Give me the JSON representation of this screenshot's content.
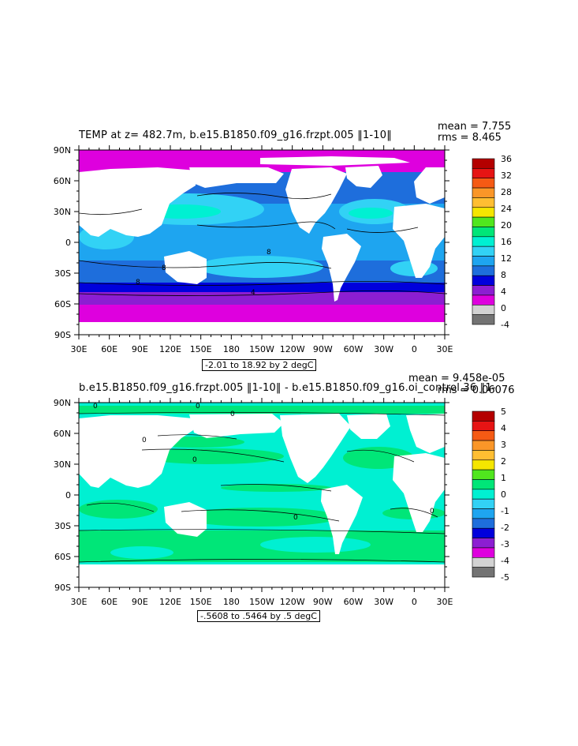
{
  "panel1": {
    "title": "TEMP at z= 482.7m, b.e15.B1850.f09_g16.frzpt.005 ‖1-10‖",
    "mean_text": "mean = 7.755",
    "rms_text": "rms = 8.465",
    "range_text": "-2.01 to 18.92 by 2 degC",
    "contour_labels": [
      "8",
      "8",
      "4",
      "8"
    ]
  },
  "panel2": {
    "title": "b.e15.B1850.f09_g16.frzpt.005 ‖1-10‖ - b.e15.B1850.f09_g16.oi_control.36 ‖1-",
    "mean_text": "mean = 9.458e-05",
    "rms_text": "rms = 0.06076",
    "range_text": "-.5608 to .5464 by .5 degC",
    "contour_labels": [
      "0",
      "0",
      "0",
      "0",
      "0",
      "0",
      "0"
    ]
  },
  "colors": {
    "land": "#ffffff",
    "scale": [
      "#737373",
      "#d2d2d2",
      "#de00de",
      "#8c1ed2",
      "#0000dc",
      "#1e6edc",
      "#1ea5f0",
      "#32d2f5",
      "#00f0d2",
      "#00e678",
      "#50e61e",
      "#f5e600",
      "#ffbe32",
      "#fa9628",
      "#f55a14",
      "#e61414",
      "#b40000"
    ]
  },
  "chart_data": [
    {
      "type": "heatmap",
      "title": "TEMP at z= 482.7m, b.e15.B1850.f09_g16.frzpt.005 ‖1-10‖",
      "x_ticks": [
        "30E",
        "60E",
        "90E",
        "120E",
        "150E",
        "180",
        "150W",
        "120W",
        "90W",
        "60W",
        "30W",
        "0",
        "30E"
      ],
      "y_ticks": [
        "90N",
        "60N",
        "30N",
        "0",
        "30S",
        "60S",
        "90S"
      ],
      "colorbar": {
        "labels": [
          "36",
          "32",
          "28",
          "24",
          "20",
          "16",
          "12",
          "8",
          "4",
          "0",
          "-4"
        ],
        "min": -4,
        "max": 36,
        "step": 2,
        "unit": "degC"
      },
      "stats": {
        "mean": 7.755,
        "rms": 8.465
      },
      "range": {
        "min": -2.01,
        "max": 18.92,
        "interval": 2
      }
    },
    {
      "type": "heatmap",
      "title": "b.e15.B1850.f09_g16.frzpt.005 ‖1-10‖ - b.e15.B1850.f09_g16.oi_control.36 ‖1-",
      "x_ticks": [
        "30E",
        "60E",
        "90E",
        "120E",
        "150E",
        "180",
        "150W",
        "120W",
        "90W",
        "60W",
        "30W",
        "0",
        "30E"
      ],
      "y_ticks": [
        "90N",
        "60N",
        "30N",
        "0",
        "30S",
        "60S",
        "90S"
      ],
      "colorbar": {
        "labels": [
          "5",
          "4",
          "3",
          "2",
          "1",
          "0",
          "-1",
          "-2",
          "-3",
          "-4",
          "-5"
        ],
        "min": -5,
        "max": 5,
        "step": 0.5,
        "unit": "degC"
      },
      "stats": {
        "mean": 9.458e-05,
        "rms": 0.06076
      },
      "range": {
        "min": -0.5608,
        "max": 0.5464,
        "interval": 0.5
      }
    }
  ]
}
